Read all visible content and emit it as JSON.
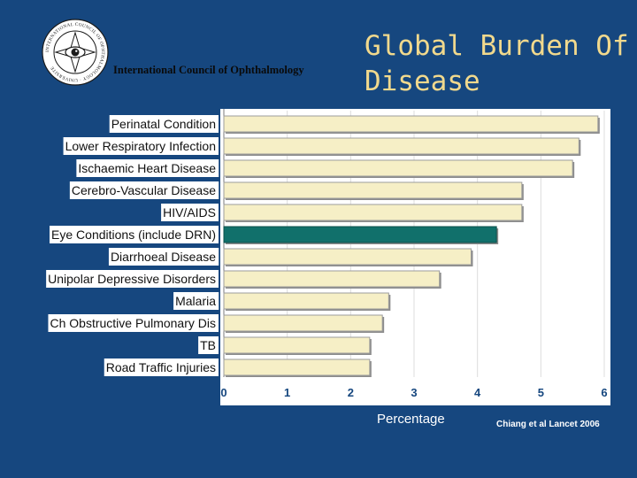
{
  "header": {
    "logo_text": "INTERNATIONAL COUNCIL OF OPHTHALMOLOGY · UNIVERSITE",
    "organization": "International Council of Ophthalmology",
    "title": "Global Burden Of Disease"
  },
  "chart_data": {
    "type": "bar",
    "orientation": "horizontal",
    "title": "Global Burden Of Disease",
    "xlabel": "Percentage",
    "ylabel": "",
    "xlim": [
      0,
      6
    ],
    "xticks": [
      "0",
      "1",
      "2",
      "3",
      "4",
      "5",
      "6"
    ],
    "categories": [
      "Perinatal Condition",
      "Lower Respiratory Infection",
      "Ischaemic Heart Disease",
      "Cerebro-Vascular Disease",
      "HIV/AIDS",
      "Eye Conditions (include DRN)",
      "Diarrhoeal Disease",
      "Unipolar Depressive Disorders",
      "Malaria",
      "Ch Obstructive Pulmonary Dis",
      "TB",
      "Road Traffic Injuries"
    ],
    "values": [
      5.9,
      5.6,
      5.5,
      4.7,
      4.7,
      4.3,
      3.9,
      3.4,
      2.6,
      2.5,
      2.3,
      2.3
    ],
    "highlight_index": 5,
    "colors": {
      "bar": "#f6efc6",
      "highlight": "#11706b",
      "plot_bg": "#ffffff",
      "label_bg": "#ffffff",
      "tick_text": "#16477f"
    }
  },
  "footer": {
    "citation": "Chiang et al Lancet 2006"
  }
}
